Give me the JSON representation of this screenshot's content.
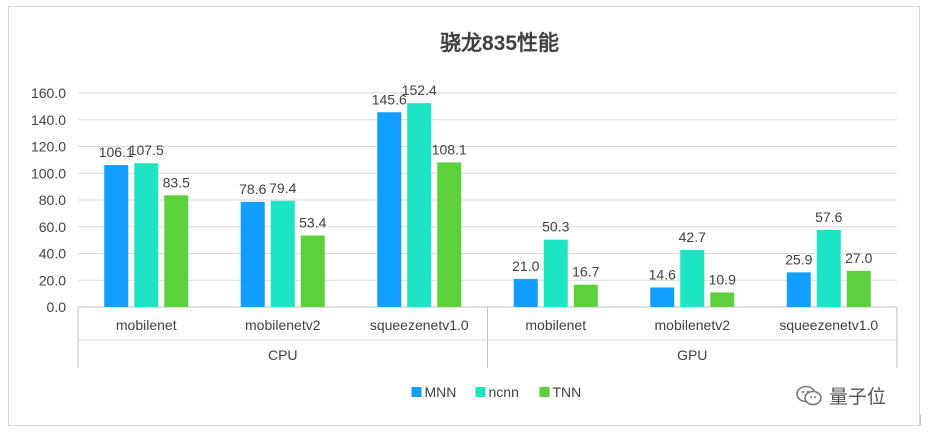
{
  "chart_data": {
    "type": "bar",
    "title": "骁龙835性能",
    "groups": [
      {
        "label": "CPU",
        "categories": [
          "mobilenet",
          "mobilenetv2",
          "squeezenetv1.0"
        ]
      },
      {
        "label": "GPU",
        "categories": [
          "mobilenet",
          "mobilenetv2",
          "squeezenetv1.0"
        ]
      }
    ],
    "series": [
      {
        "name": "MNN",
        "color": "#119eff",
        "values": [
          106.1,
          78.6,
          145.6,
          21.0,
          14.6,
          25.9
        ]
      },
      {
        "name": "ncnn",
        "color": "#1de5c4",
        "values": [
          107.5,
          79.4,
          152.4,
          50.3,
          42.7,
          57.6
        ]
      },
      {
        "name": "TNN",
        "color": "#5dd13c",
        "values": [
          83.5,
          53.4,
          108.1,
          16.7,
          10.9,
          27.0
        ]
      }
    ],
    "ylim": [
      0,
      160
    ],
    "yticks": [
      0,
      20,
      40,
      60,
      80,
      100,
      120,
      140,
      160
    ],
    "tick_decimals": 1,
    "grid": true,
    "legend": "bottom",
    "xlabel": "",
    "ylabel": ""
  },
  "watermark": {
    "text": "量子位",
    "icon": "wechat-icon"
  }
}
